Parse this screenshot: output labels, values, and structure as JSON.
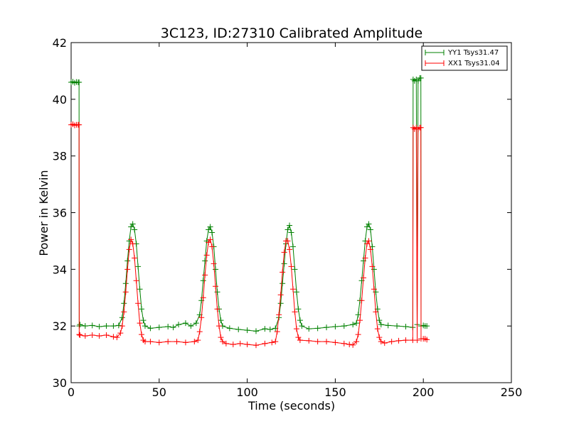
{
  "chart_data": {
    "type": "line",
    "title": "3C123, ID:27310 Calibrated Amplitude",
    "xlabel": "Time (seconds)",
    "ylabel": "Power in Kelvin",
    "xlim": [
      0,
      250
    ],
    "ylim": [
      30,
      42
    ],
    "xticks": [
      0,
      50,
      100,
      150,
      200,
      250
    ],
    "yticks": [
      30,
      32,
      34,
      36,
      38,
      40,
      42
    ],
    "legend_position": "top-right",
    "series": [
      {
        "name": "YY1 Tsys31.47",
        "color": "#008000",
        "marker": "+",
        "points": [
          [
            0,
            40.6
          ],
          [
            1,
            40.62
          ],
          [
            2,
            40.58
          ],
          [
            3,
            40.61
          ],
          [
            4,
            40.6
          ],
          [
            4.5,
            40.6
          ],
          [
            4.6,
            32.0
          ],
          [
            5,
            32.05
          ],
          [
            8,
            32.0
          ],
          [
            12,
            32.02
          ],
          [
            16,
            31.98
          ],
          [
            20,
            32.0
          ],
          [
            24,
            32.0
          ],
          [
            27,
            32.02
          ],
          [
            29,
            32.3
          ],
          [
            30,
            32.8
          ],
          [
            31,
            33.5
          ],
          [
            32,
            34.3
          ],
          [
            33,
            35.0
          ],
          [
            34,
            35.5
          ],
          [
            35,
            35.6
          ],
          [
            36,
            35.4
          ],
          [
            37,
            34.9
          ],
          [
            38,
            34.1
          ],
          [
            39,
            33.3
          ],
          [
            40,
            32.6
          ],
          [
            41,
            32.2
          ],
          [
            42,
            32.0
          ],
          [
            45,
            31.92
          ],
          [
            50,
            31.95
          ],
          [
            55,
            31.98
          ],
          [
            58,
            31.95
          ],
          [
            61,
            32.05
          ],
          [
            65,
            32.1
          ],
          [
            68,
            32.0
          ],
          [
            71,
            32.1
          ],
          [
            73,
            32.4
          ],
          [
            74,
            32.9
          ],
          [
            75,
            33.6
          ],
          [
            76,
            34.3
          ],
          [
            77,
            35.0
          ],
          [
            78,
            35.4
          ],
          [
            79,
            35.5
          ],
          [
            80,
            35.3
          ],
          [
            81,
            34.8
          ],
          [
            82,
            34.0
          ],
          [
            83,
            33.2
          ],
          [
            84,
            32.6
          ],
          [
            85,
            32.2
          ],
          [
            86,
            32.0
          ],
          [
            90,
            31.92
          ],
          [
            95,
            31.88
          ],
          [
            100,
            31.85
          ],
          [
            105,
            31.82
          ],
          [
            110,
            31.9
          ],
          [
            113,
            31.88
          ],
          [
            116,
            31.92
          ],
          [
            118,
            32.3
          ],
          [
            119,
            32.8
          ],
          [
            120,
            33.5
          ],
          [
            121,
            34.2
          ],
          [
            122,
            34.9
          ],
          [
            123,
            35.4
          ],
          [
            124,
            35.55
          ],
          [
            125,
            35.3
          ],
          [
            126,
            34.8
          ],
          [
            127,
            34.0
          ],
          [
            128,
            33.2
          ],
          [
            129,
            32.6
          ],
          [
            130,
            32.2
          ],
          [
            131,
            32.0
          ],
          [
            135,
            31.9
          ],
          [
            140,
            31.92
          ],
          [
            145,
            31.95
          ],
          [
            150,
            31.98
          ],
          [
            155,
            32.0
          ],
          [
            160,
            32.05
          ],
          [
            162,
            32.1
          ],
          [
            163,
            32.4
          ],
          [
            164,
            32.9
          ],
          [
            165,
            33.6
          ],
          [
            166,
            34.3
          ],
          [
            167,
            35.0
          ],
          [
            168,
            35.5
          ],
          [
            169,
            35.6
          ],
          [
            170,
            35.4
          ],
          [
            171,
            34.8
          ],
          [
            172,
            34.0
          ],
          [
            173,
            33.2
          ],
          [
            174,
            32.6
          ],
          [
            175,
            32.2
          ],
          [
            176,
            32.05
          ],
          [
            180,
            32.02
          ],
          [
            185,
            32.0
          ],
          [
            190,
            31.98
          ],
          [
            194,
            31.95
          ],
          [
            194.2,
            40.7
          ],
          [
            195,
            40.65
          ],
          [
            196,
            40.7
          ],
          [
            196.5,
            32.05
          ],
          [
            197,
            40.65
          ],
          [
            198,
            40.75
          ],
          [
            198.6,
            40.75
          ],
          [
            198.7,
            32.0
          ],
          [
            200,
            32.02
          ],
          [
            201,
            32.0
          ],
          [
            202,
            32.0
          ]
        ]
      },
      {
        "name": "XX1 Tsys31.04",
        "color": "#ff0000",
        "marker": "+",
        "points": [
          [
            0,
            39.1
          ],
          [
            1,
            39.12
          ],
          [
            2,
            39.08
          ],
          [
            3,
            39.1
          ],
          [
            4,
            39.1
          ],
          [
            4.5,
            39.1
          ],
          [
            4.6,
            31.7
          ],
          [
            5,
            31.68
          ],
          [
            8,
            31.65
          ],
          [
            12,
            31.68
          ],
          [
            16,
            31.65
          ],
          [
            20,
            31.68
          ],
          [
            24,
            31.62
          ],
          [
            26,
            31.6
          ],
          [
            28,
            31.75
          ],
          [
            29,
            32.0
          ],
          [
            30,
            32.5
          ],
          [
            31,
            33.2
          ],
          [
            32,
            34.0
          ],
          [
            33,
            34.7
          ],
          [
            34,
            35.05
          ],
          [
            35,
            34.9
          ],
          [
            36,
            34.4
          ],
          [
            37,
            33.6
          ],
          [
            38,
            32.8
          ],
          [
            39,
            32.1
          ],
          [
            40,
            31.7
          ],
          [
            41,
            31.5
          ],
          [
            42,
            31.45
          ],
          [
            45,
            31.45
          ],
          [
            50,
            31.42
          ],
          [
            55,
            31.45
          ],
          [
            60,
            31.45
          ],
          [
            65,
            31.42
          ],
          [
            70,
            31.45
          ],
          [
            72,
            31.5
          ],
          [
            73,
            31.8
          ],
          [
            74,
            32.3
          ],
          [
            75,
            33.0
          ],
          [
            76,
            33.8
          ],
          [
            77,
            34.5
          ],
          [
            78,
            34.95
          ],
          [
            79,
            35.05
          ],
          [
            80,
            34.8
          ],
          [
            81,
            34.2
          ],
          [
            82,
            33.4
          ],
          [
            83,
            32.6
          ],
          [
            84,
            32.0
          ],
          [
            85,
            31.6
          ],
          [
            86,
            31.45
          ],
          [
            88,
            31.38
          ],
          [
            92,
            31.35
          ],
          [
            96,
            31.38
          ],
          [
            100,
            31.35
          ],
          [
            105,
            31.32
          ],
          [
            110,
            31.38
          ],
          [
            114,
            31.42
          ],
          [
            116,
            31.45
          ],
          [
            117,
            31.8
          ],
          [
            118,
            32.4
          ],
          [
            119,
            33.1
          ],
          [
            120,
            33.9
          ],
          [
            121,
            34.6
          ],
          [
            122,
            35.0
          ],
          [
            123,
            35.0
          ],
          [
            124,
            34.7
          ],
          [
            125,
            34.1
          ],
          [
            126,
            33.3
          ],
          [
            127,
            32.5
          ],
          [
            128,
            31.9
          ],
          [
            129,
            31.6
          ],
          [
            130,
            31.5
          ],
          [
            135,
            31.48
          ],
          [
            140,
            31.45
          ],
          [
            145,
            31.45
          ],
          [
            150,
            31.42
          ],
          [
            155,
            31.38
          ],
          [
            158,
            31.35
          ],
          [
            160,
            31.33
          ],
          [
            162,
            31.45
          ],
          [
            163,
            31.7
          ],
          [
            164,
            32.2
          ],
          [
            165,
            32.9
          ],
          [
            166,
            33.7
          ],
          [
            167,
            34.4
          ],
          [
            168,
            34.9
          ],
          [
            169,
            35.0
          ],
          [
            170,
            34.7
          ],
          [
            171,
            34.1
          ],
          [
            172,
            33.3
          ],
          [
            173,
            32.5
          ],
          [
            174,
            31.9
          ],
          [
            175,
            31.6
          ],
          [
            176,
            31.45
          ],
          [
            178,
            31.4
          ],
          [
            182,
            31.45
          ],
          [
            186,
            31.48
          ],
          [
            190,
            31.5
          ],
          [
            194,
            31.5
          ],
          [
            194.2,
            39.0
          ],
          [
            195,
            38.95
          ],
          [
            196,
            39.0
          ],
          [
            196.5,
            31.5
          ],
          [
            197,
            38.95
          ],
          [
            198,
            39.0
          ],
          [
            198.6,
            39.0
          ],
          [
            198.7,
            31.55
          ],
          [
            200,
            31.55
          ],
          [
            201,
            31.55
          ],
          [
            202,
            31.52
          ]
        ]
      }
    ]
  }
}
